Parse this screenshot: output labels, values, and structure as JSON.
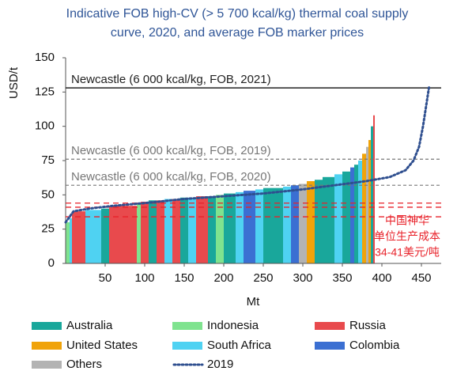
{
  "chart_data": {
    "type": "supply_curve",
    "title": [
      "Indicative FOB high-CV (> 5 700 kcal/kg) thermal coal supply",
      "curve, 2020, and average FOB marker prices"
    ],
    "x_label": "Mt",
    "y_label": "USD/t",
    "xlim": [
      0,
      475
    ],
    "ylim": [
      0,
      150
    ],
    "xticks": [
      50,
      100,
      150,
      200,
      250,
      300,
      350,
      400,
      450
    ],
    "yticks": [
      0,
      25,
      50,
      75,
      100,
      125,
      150
    ],
    "series": [
      {
        "name": "Australia",
        "color": "#19a79b"
      },
      {
        "name": "Indonesia",
        "color": "#7fe38f"
      },
      {
        "name": "Russia",
        "color": "#e84a4d"
      },
      {
        "name": "United States",
        "color": "#f0a30a"
      },
      {
        "name": "South Africa",
        "color": "#4fd2f2"
      },
      {
        "name": "Colombia",
        "color": "#3b6fd2"
      },
      {
        "name": "Others",
        "color": "#b3b3b3"
      }
    ],
    "edges": [
      0,
      5,
      8,
      25,
      45,
      55,
      90,
      95,
      105,
      115,
      125,
      135,
      145,
      155,
      165,
      180,
      190,
      200,
      215,
      225,
      240,
      250,
      260,
      275,
      285,
      295,
      305,
      315,
      325,
      340,
      350,
      360,
      365,
      370,
      375,
      380,
      383,
      386,
      389,
      391
    ],
    "values": [
      30,
      33,
      38,
      39,
      40,
      42,
      44,
      45,
      46,
      46,
      47,
      47,
      48,
      48,
      49,
      49,
      50,
      51,
      52,
      53,
      54,
      55,
      55,
      56,
      57,
      58,
      60,
      61,
      63,
      65,
      67,
      70,
      72,
      75,
      80,
      85,
      90,
      100,
      108
    ],
    "groups": [
      "Indonesia",
      "South Africa",
      "Russia",
      "South Africa",
      "Australia",
      "Russia",
      "Indonesia",
      "Russia",
      "Australia",
      "Russia",
      "South Africa",
      "Russia",
      "Australia",
      "South Africa",
      "Russia",
      "Australia",
      "Indonesia",
      "Australia",
      "South Africa",
      "Colombia",
      "South Africa",
      "Australia",
      "Australia",
      "South Africa",
      "Colombia",
      "Others",
      "United States",
      "Australia",
      "Australia",
      "South Africa",
      "Australia",
      "Colombia",
      "Australia",
      "South Africa",
      "United States",
      "Others",
      "United States",
      "Australia",
      "Russia"
    ],
    "line": {
      "name": "2019",
      "color": "#2f4f8f",
      "x": [
        0,
        10,
        30,
        60,
        100,
        150,
        200,
        250,
        300,
        340,
        380,
        410,
        430,
        440,
        447,
        452,
        456,
        460
      ],
      "values": [
        30,
        38,
        40,
        42,
        44,
        47,
        49,
        51,
        54,
        57,
        60,
        63,
        68,
        75,
        85,
        100,
        115,
        130
      ]
    },
    "reference_lines": [
      {
        "label": "Newcastle (6 000 kcal/kg, FOB, 2021)",
        "value": 128,
        "color": "#222222",
        "dashed": false
      },
      {
        "label": "Newcastle (6 000 kcal/kg, FOB, 2019)",
        "value": 76,
        "color": "#777777",
        "dashed": true
      },
      {
        "label": "Newcastle (6 000 kcal/kg, FOB, 2020)",
        "value": 57,
        "color": "#777777",
        "dashed": true
      }
    ],
    "annotation": {
      "text": [
        "中国神华",
        "单位生产成本",
        "34-41美元/吨"
      ],
      "values": [
        34,
        41,
        44
      ],
      "color": "#e8222a"
    }
  }
}
